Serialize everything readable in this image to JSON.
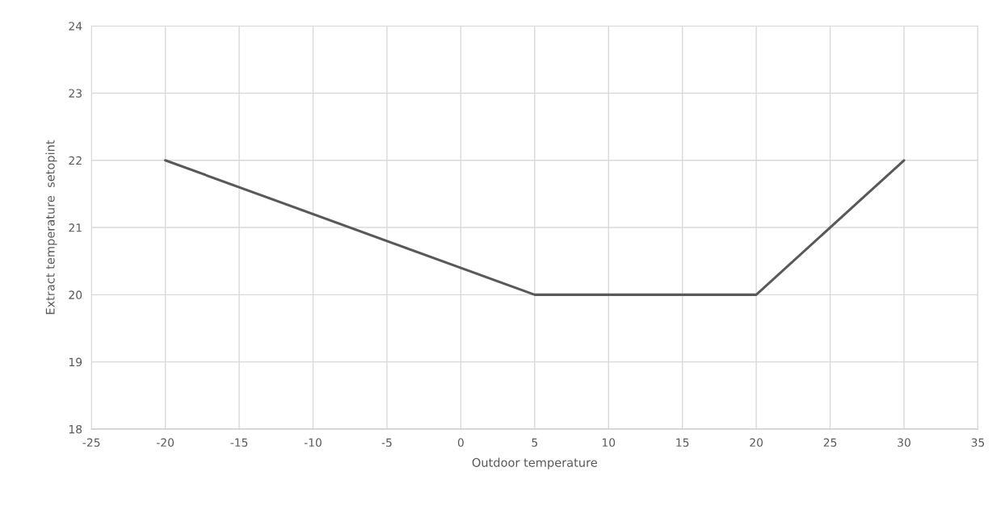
{
  "chart_data": {
    "type": "line",
    "xlabel": "Outdoor temperature",
    "ylabel": "Extract temperature  setopint",
    "x": [
      -20,
      5,
      20,
      30
    ],
    "series": [
      {
        "color": "#595959",
        "values": [
          22,
          20,
          20,
          22
        ]
      }
    ],
    "xlim": [
      -25,
      35
    ],
    "xticks": [
      -25,
      -20,
      -15,
      -10,
      -5,
      0,
      5,
      10,
      15,
      20,
      25,
      30,
      35
    ],
    "ylim": [
      18,
      24
    ],
    "yticks": [
      18,
      19,
      20,
      21,
      22,
      23,
      24
    ],
    "grid": true,
    "marker": "none",
    "line_style": "solid"
  }
}
